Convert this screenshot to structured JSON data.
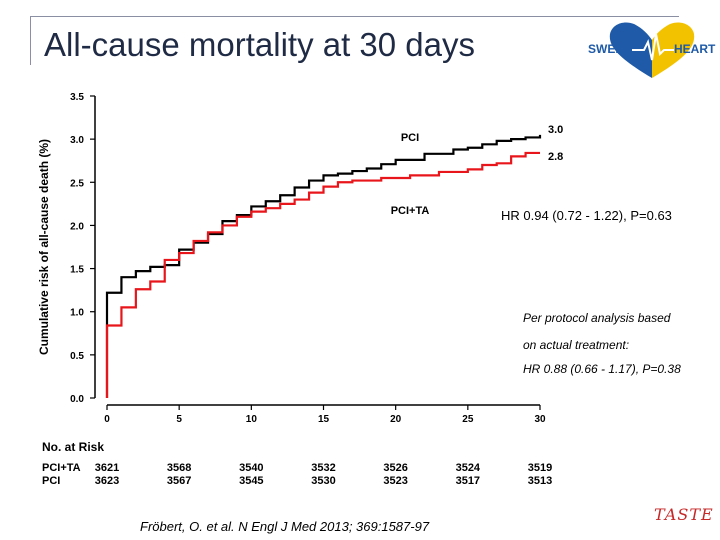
{
  "slide": {
    "title": "All-cause mortality at 30 days",
    "logo_text_left": "SWEDE",
    "logo_text_right": "HEART",
    "hr_text": "HR 0.94 (0.72 - 1.22), P=0.63",
    "per_protocol_line1": "Per protocol analysis based",
    "per_protocol_line2": "on actual treatment:",
    "per_protocol_line3": "HR 0.88 (0.66 - 1.17), P=0.38",
    "citation": "Fröbert, O. et al. N Engl J Med 2013; 369:1587-97",
    "taste_logo": "TASTE",
    "colors": {
      "pci": "#000000",
      "pci_ta": "#e8161b",
      "title": "#1f2a44",
      "taste": "#c62828"
    }
  },
  "chart_data": {
    "type": "line",
    "ylabel": "Cumulative risk of all-cause death (%)",
    "xlabel": "",
    "xlim": [
      0,
      30
    ],
    "ylim": [
      0,
      3.5
    ],
    "x_ticks": [
      "0",
      "5",
      "10",
      "15",
      "20",
      "25",
      "30"
    ],
    "y_ticks": [
      "0.0",
      "0.5",
      "1.0",
      "1.5",
      "2.0",
      "2.5",
      "3.0",
      "3.5"
    ],
    "grid": false,
    "series": [
      {
        "name": "PCI",
        "end_label": "3.0",
        "color": "#000000",
        "x": [
          0,
          0,
          1,
          2,
          3,
          4,
          5,
          6,
          7,
          8,
          9,
          10,
          11,
          12,
          13,
          14,
          15,
          16,
          17,
          18,
          19,
          20,
          21,
          22,
          23,
          24,
          25,
          26,
          27,
          28,
          29,
          30
        ],
        "y": [
          0,
          1.22,
          1.4,
          1.47,
          1.52,
          1.54,
          1.72,
          1.8,
          1.9,
          2.05,
          2.12,
          2.22,
          2.28,
          2.35,
          2.44,
          2.52,
          2.58,
          2.6,
          2.63,
          2.66,
          2.71,
          2.76,
          2.76,
          2.83,
          2.83,
          2.88,
          2.9,
          2.94,
          2.98,
          3.0,
          3.02,
          3.05
        ]
      },
      {
        "name": "PCI+TA",
        "end_label": "2.8",
        "color": "#e8161b",
        "x": [
          0,
          0,
          1,
          2,
          3,
          4,
          5,
          6,
          7,
          8,
          9,
          10,
          11,
          12,
          13,
          14,
          15,
          16,
          17,
          18,
          19,
          20,
          21,
          22,
          23,
          24,
          25,
          26,
          27,
          28,
          29,
          30
        ],
        "y": [
          0,
          0.84,
          1.05,
          1.26,
          1.35,
          1.6,
          1.68,
          1.82,
          1.92,
          2.0,
          2.1,
          2.16,
          2.2,
          2.25,
          2.3,
          2.38,
          2.45,
          2.5,
          2.52,
          2.52,
          2.55,
          2.55,
          2.58,
          2.58,
          2.62,
          2.62,
          2.65,
          2.7,
          2.72,
          2.8,
          2.84,
          2.84
        ]
      }
    ]
  },
  "risk_table": {
    "header": "No. at Risk",
    "rows": [
      {
        "label": "PCI+TA",
        "values": [
          "3621",
          "3568",
          "3540",
          "3532",
          "3526",
          "3524",
          "3519"
        ]
      },
      {
        "label": "PCI",
        "values": [
          "3623",
          "3567",
          "3545",
          "3530",
          "3523",
          "3517",
          "3513"
        ]
      }
    ]
  }
}
